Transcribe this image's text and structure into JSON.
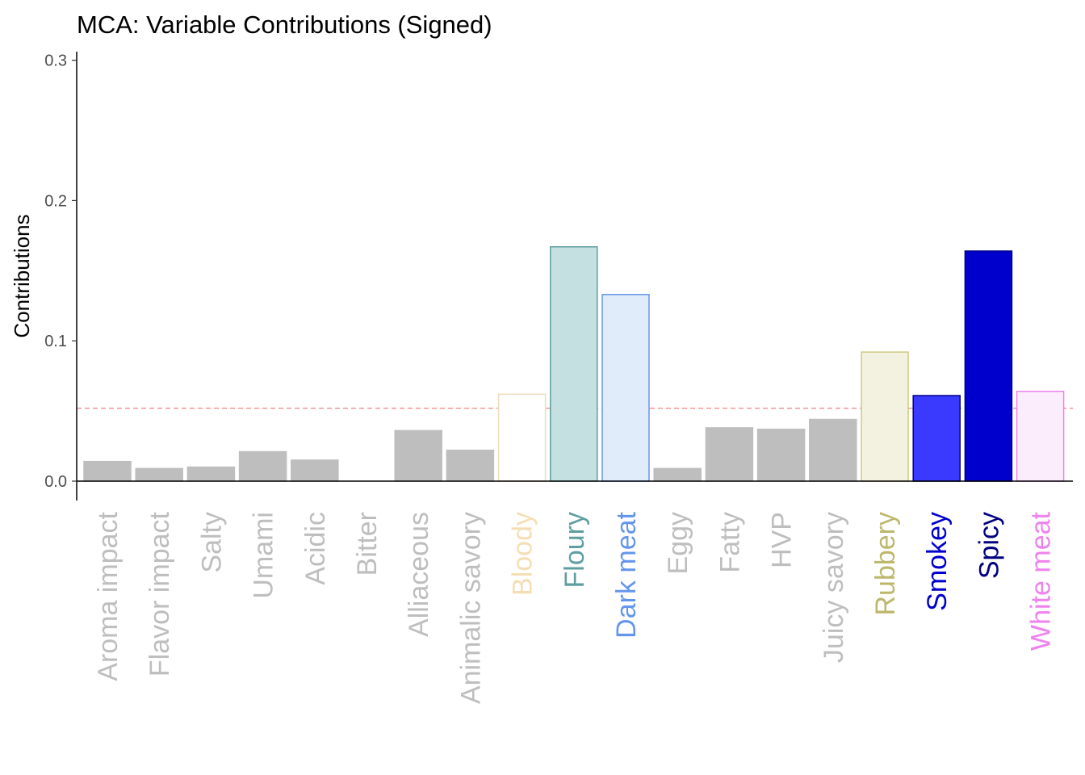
{
  "chart_data": {
    "type": "bar",
    "title": "MCA: Variable Contributions (Signed)",
    "xlabel": "",
    "ylabel": "Contributions",
    "ylim": [
      0,
      0.3
    ],
    "yticks": [
      0.0,
      0.1,
      0.2,
      0.3
    ],
    "ytick_labels": [
      "0.0",
      "0.1",
      "0.2",
      "0.3"
    ],
    "grid": false,
    "reference_line": {
      "value": 0.052,
      "style": "dashed",
      "color": "#f08080"
    },
    "categories": [
      "Aroma impact",
      "Flavor impact",
      "Salty",
      "Umami",
      "Acidic",
      "Bitter",
      "Alliaceous",
      "Animalic savory",
      "Bloody",
      "Floury",
      "Dark meat",
      "Eggy",
      "Fatty",
      "HVP",
      "Juicy savory",
      "Rubbery",
      "Smokey",
      "Spicy",
      "White meat"
    ],
    "values": [
      0.014,
      0.009,
      0.01,
      0.021,
      0.015,
      0.0,
      0.036,
      0.022,
      0.062,
      0.167,
      0.133,
      0.009,
      0.038,
      0.037,
      0.044,
      0.092,
      0.061,
      0.164,
      0.064
    ],
    "fill_colors": [
      "#bebebe",
      "#bebebe",
      "#bebebe",
      "#bebebe",
      "#bebebe",
      "#bebebe",
      "#bebebe",
      "#bebebe",
      "#ffffff",
      "#c5e0e0",
      "#e1ecfb",
      "#bebebe",
      "#bebebe",
      "#bebebe",
      "#bebebe",
      "#f3f1df",
      "#3a3aff",
      "#0000cd",
      "#fcedfc"
    ],
    "border_colors": [
      "#bebebe",
      "#bebebe",
      "#bebebe",
      "#bebebe",
      "#bebebe",
      "#bebebe",
      "#bebebe",
      "#bebebe",
      "#f0dcbc",
      "#5f9ea0",
      "#6495ed",
      "#bebebe",
      "#bebebe",
      "#bebebe",
      "#bebebe",
      "#cfca86",
      "#00008b",
      "#00008b",
      "#ee82ee"
    ],
    "label_colors": [
      "#bebebe",
      "#bebebe",
      "#bebebe",
      "#bebebe",
      "#bebebe",
      "#bebebe",
      "#bebebe",
      "#bebebe",
      "#f5deb3",
      "#5f9ea0",
      "#6495ed",
      "#bebebe",
      "#bebebe",
      "#bebebe",
      "#bebebe",
      "#bdb76b",
      "#0000cd",
      "#000080",
      "#ee82ee"
    ]
  }
}
